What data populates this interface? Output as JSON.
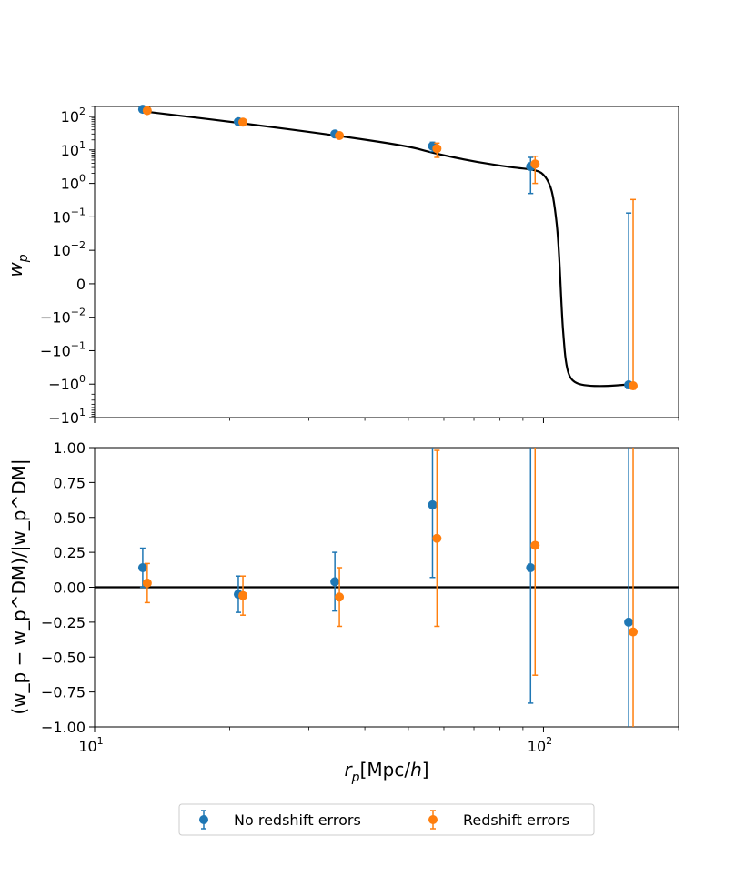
{
  "chart_data": [
    {
      "type": "scatter",
      "panel": "top",
      "ylabel": "w_p",
      "yscale": "symlog",
      "xscale": "log",
      "xlim": [
        10,
        200
      ],
      "ylim": [
        -10,
        200
      ],
      "yticks": [
        {
          "value": 100,
          "label": "10",
          "exp": "2"
        },
        {
          "value": 10,
          "label": "10",
          "exp": "1"
        },
        {
          "value": 1,
          "label": "10",
          "exp": "0"
        },
        {
          "value": 0.1,
          "label": "10",
          "exp": "−1"
        },
        {
          "value": 0.01,
          "label": "10",
          "exp": "−2"
        },
        {
          "value": 0,
          "label": "0",
          "exp": ""
        },
        {
          "value": -0.01,
          "label": "−10",
          "exp": "−2"
        },
        {
          "value": -0.1,
          "label": "−10",
          "exp": "−1"
        },
        {
          "value": -1,
          "label": "−10",
          "exp": "0"
        },
        {
          "value": -10,
          "label": "−10",
          "exp": "1"
        }
      ],
      "model_curve": {
        "color": "#000000",
        "points": [
          [
            13,
            140
          ],
          [
            21,
            65
          ],
          [
            34,
            28
          ],
          [
            50,
            13
          ],
          [
            57,
            8
          ],
          [
            70,
            4.5
          ],
          [
            85,
            3.0
          ],
          [
            95,
            2.6
          ],
          [
            100,
            2.0
          ],
          [
            104,
            0.8
          ],
          [
            106,
            0.2
          ],
          [
            108,
            0.02
          ],
          [
            110,
            -0.01
          ],
          [
            111,
            -0.05
          ],
          [
            112,
            -0.2
          ],
          [
            114,
            -0.6
          ],
          [
            118,
            -0.95
          ],
          [
            125,
            -1.12
          ],
          [
            135,
            -1.15
          ],
          [
            145,
            -1.1
          ],
          [
            157,
            -1.0
          ]
        ]
      },
      "series": [
        {
          "name": "No redshift errors",
          "color": "#1f77b4",
          "x": [
            12.8,
            20.9,
            34.3,
            56.6,
            93.6,
            154.8
          ],
          "y": [
            165,
            70,
            30,
            13,
            3.2,
            -1.05
          ],
          "yerr_low": [
            150,
            60,
            25,
            9,
            0.5,
            -1.35
          ],
          "yerr_high": [
            180,
            80,
            35,
            17,
            6,
            0.13
          ]
        },
        {
          "name": "Redshift errors",
          "color": "#ff7f0e",
          "x": [
            13.1,
            21.4,
            35.1,
            57.9,
            95.8,
            158.4
          ],
          "y": [
            150,
            68,
            27,
            11,
            3.8,
            -1.12
          ],
          "yerr_low": [
            135,
            58,
            22,
            6,
            1.0,
            -1.4
          ],
          "yerr_high": [
            165,
            78,
            32,
            16,
            6.5,
            0.33
          ]
        }
      ]
    },
    {
      "type": "scatter",
      "panel": "bottom",
      "xlabel": "r_p[Mpc/h]",
      "ylabel": "(w_p − w_p^DM)/|w_p^DM|",
      "xscale": "log",
      "xlim": [
        10,
        200
      ],
      "ylim": [
        -1.0,
        1.0
      ],
      "yticks": [
        "1.00",
        "0.75",
        "0.50",
        "0.25",
        "0.00",
        "−0.25",
        "−0.50",
        "−0.75",
        "−1.00"
      ],
      "ytick_values": [
        1.0,
        0.75,
        0.5,
        0.25,
        0.0,
        -0.25,
        -0.5,
        -0.75,
        -1.0
      ],
      "xticks": [
        {
          "value": 10,
          "label": "10",
          "exp": "1"
        },
        {
          "value": 100,
          "label": "10",
          "exp": "2"
        }
      ],
      "hline": 0.0,
      "series": [
        {
          "name": "No redshift errors",
          "color": "#1f77b4",
          "x": [
            12.8,
            20.9,
            34.3,
            56.6,
            93.6,
            154.8
          ],
          "y": [
            0.14,
            -0.05,
            0.04,
            0.59,
            0.14,
            -0.25
          ],
          "err": [
            0.14,
            0.13,
            0.21,
            0.52,
            0.97,
            1.6
          ]
        },
        {
          "name": "Redshift errors",
          "color": "#ff7f0e",
          "x": [
            13.1,
            21.4,
            35.1,
            57.9,
            95.8,
            158.4
          ],
          "y": [
            0.03,
            -0.06,
            -0.07,
            0.35,
            0.3,
            -0.32
          ],
          "err": [
            0.14,
            0.14,
            0.21,
            0.63,
            0.93,
            1.6
          ]
        }
      ]
    }
  ],
  "legend": {
    "location": "bottom-center",
    "entries": [
      {
        "label": "No redshift errors",
        "color": "#1f77b4"
      },
      {
        "label": "Redshift errors",
        "color": "#ff7f0e"
      }
    ]
  },
  "labels": {
    "top_ylabel_main": "w",
    "top_ylabel_sub": "p",
    "xlabel_main": "r",
    "xlabel_sub": "p",
    "xlabel_unit": "[Mpc/",
    "xlabel_h": "h",
    "xlabel_close": "]"
  }
}
